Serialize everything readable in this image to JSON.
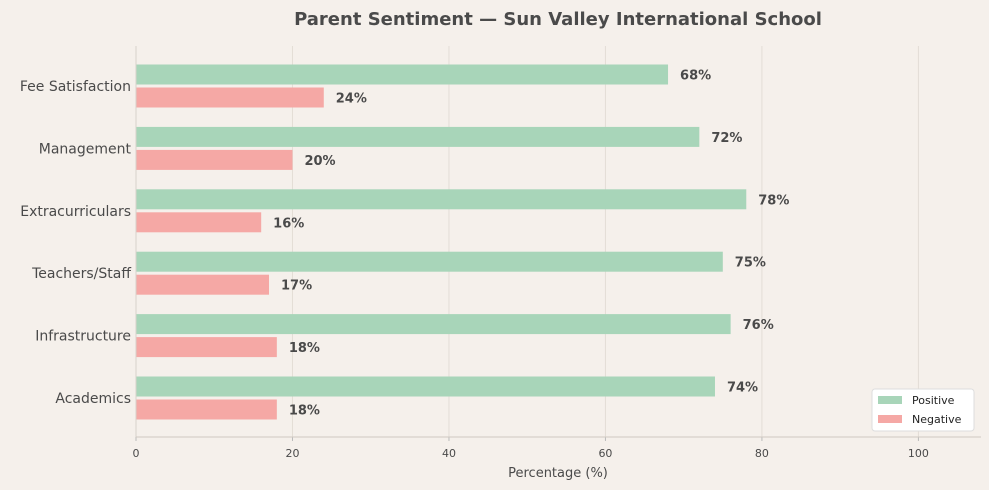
{
  "chart_data": {
    "type": "bar",
    "orientation": "horizontal",
    "title": "Parent Sentiment — Sun Valley International School",
    "xlabel": "Percentage (%)",
    "ylabel": "",
    "xlim": [
      0,
      108
    ],
    "xticks": [
      0,
      20,
      40,
      60,
      80,
      100
    ],
    "grid": true,
    "legend_position": "bottom-right",
    "categories": [
      "Academics",
      "Infrastructure",
      "Teachers/Staff",
      "Extracurriculars",
      "Management",
      "Fee Satisfaction"
    ],
    "series": [
      {
        "name": "Positive",
        "color": "#a8d5b9",
        "values": [
          74,
          76,
          75,
          78,
          72,
          68
        ]
      },
      {
        "name": "Negative",
        "color": "#f5a8a5",
        "values": [
          18,
          18,
          17,
          16,
          20,
          24
        ]
      }
    ],
    "value_label_suffix": "%"
  }
}
